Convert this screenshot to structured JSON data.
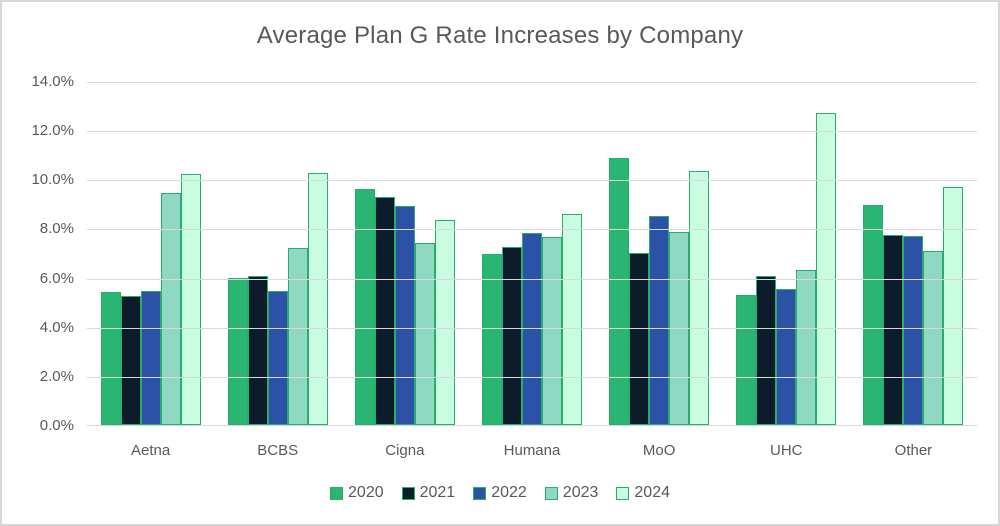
{
  "title": "Average Plan G Rate Increases by Company",
  "chart_data": {
    "type": "bar",
    "title": "Average Plan G Rate Increases by Company",
    "categories": [
      "Aetna",
      "BCBS",
      "Cigna",
      "Humana",
      "MoO",
      "UHC",
      "Other"
    ],
    "series": [
      {
        "name": "2020",
        "color": "#2bb573",
        "values": [
          5.4,
          6.0,
          9.6,
          6.95,
          10.85,
          5.3,
          8.95
        ]
      },
      {
        "name": "2021",
        "color": "#0d1c2b",
        "values": [
          5.25,
          6.05,
          9.3,
          7.25,
          7.0,
          6.05,
          7.75
        ]
      },
      {
        "name": "2022",
        "color": "#2b52a7",
        "values": [
          5.45,
          5.45,
          8.9,
          7.8,
          8.5,
          5.55,
          7.7
        ]
      },
      {
        "name": "2023",
        "color": "#8fd8c2",
        "values": [
          9.45,
          7.2,
          7.4,
          7.65,
          7.85,
          6.3,
          7.1
        ]
      },
      {
        "name": "2024",
        "color": "#c8fde2",
        "values": [
          10.2,
          10.25,
          8.35,
          8.6,
          10.35,
          12.7,
          9.7
        ]
      }
    ],
    "bar_outline_color": "#27ae6e",
    "ylim": [
      0,
      14
    ],
    "ytick_step": 2,
    "ytick_labels": [
      "0.0%",
      "2.0%",
      "4.0%",
      "6.0%",
      "8.0%",
      "10.0%",
      "12.0%",
      "14.0%"
    ],
    "grid": true,
    "gridline_color": "#d9d9d9",
    "legend_position": "bottom",
    "text_color": "#595959",
    "legend_labels": [
      "2020",
      "2021",
      "2022",
      "2023",
      "2024"
    ]
  }
}
